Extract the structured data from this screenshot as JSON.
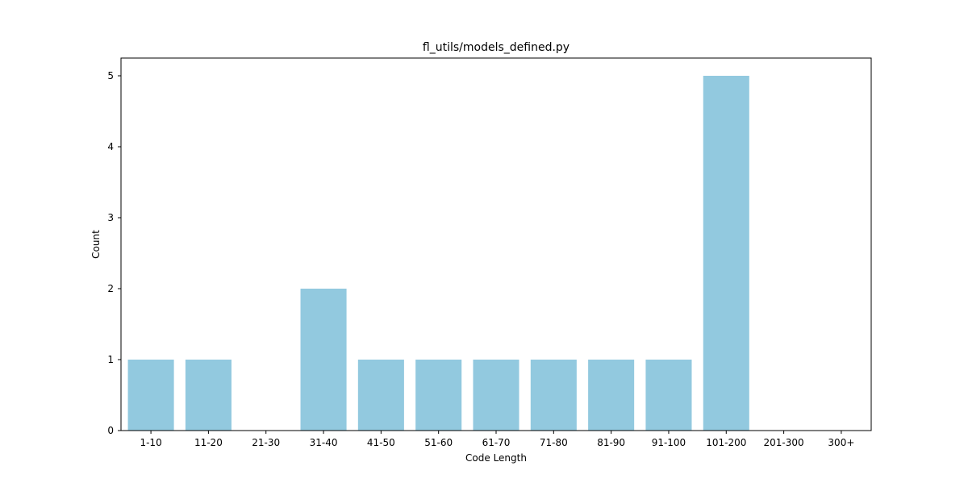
{
  "chart_data": {
    "type": "bar",
    "title": "fl_utils/models_defined.py",
    "xlabel": "Code Length",
    "ylabel": "Count",
    "categories": [
      "1-10",
      "11-20",
      "21-30",
      "31-40",
      "41-50",
      "51-60",
      "61-70",
      "71-80",
      "81-90",
      "91-100",
      "101-200",
      "201-300",
      "300+"
    ],
    "values": [
      1,
      1,
      0,
      2,
      1,
      1,
      1,
      1,
      1,
      1,
      5,
      0,
      0
    ],
    "yticks": [
      0,
      1,
      2,
      3,
      4,
      5
    ],
    "ylim": [
      0,
      5.25
    ],
    "grid": false,
    "bar_color": "#92c9df"
  }
}
